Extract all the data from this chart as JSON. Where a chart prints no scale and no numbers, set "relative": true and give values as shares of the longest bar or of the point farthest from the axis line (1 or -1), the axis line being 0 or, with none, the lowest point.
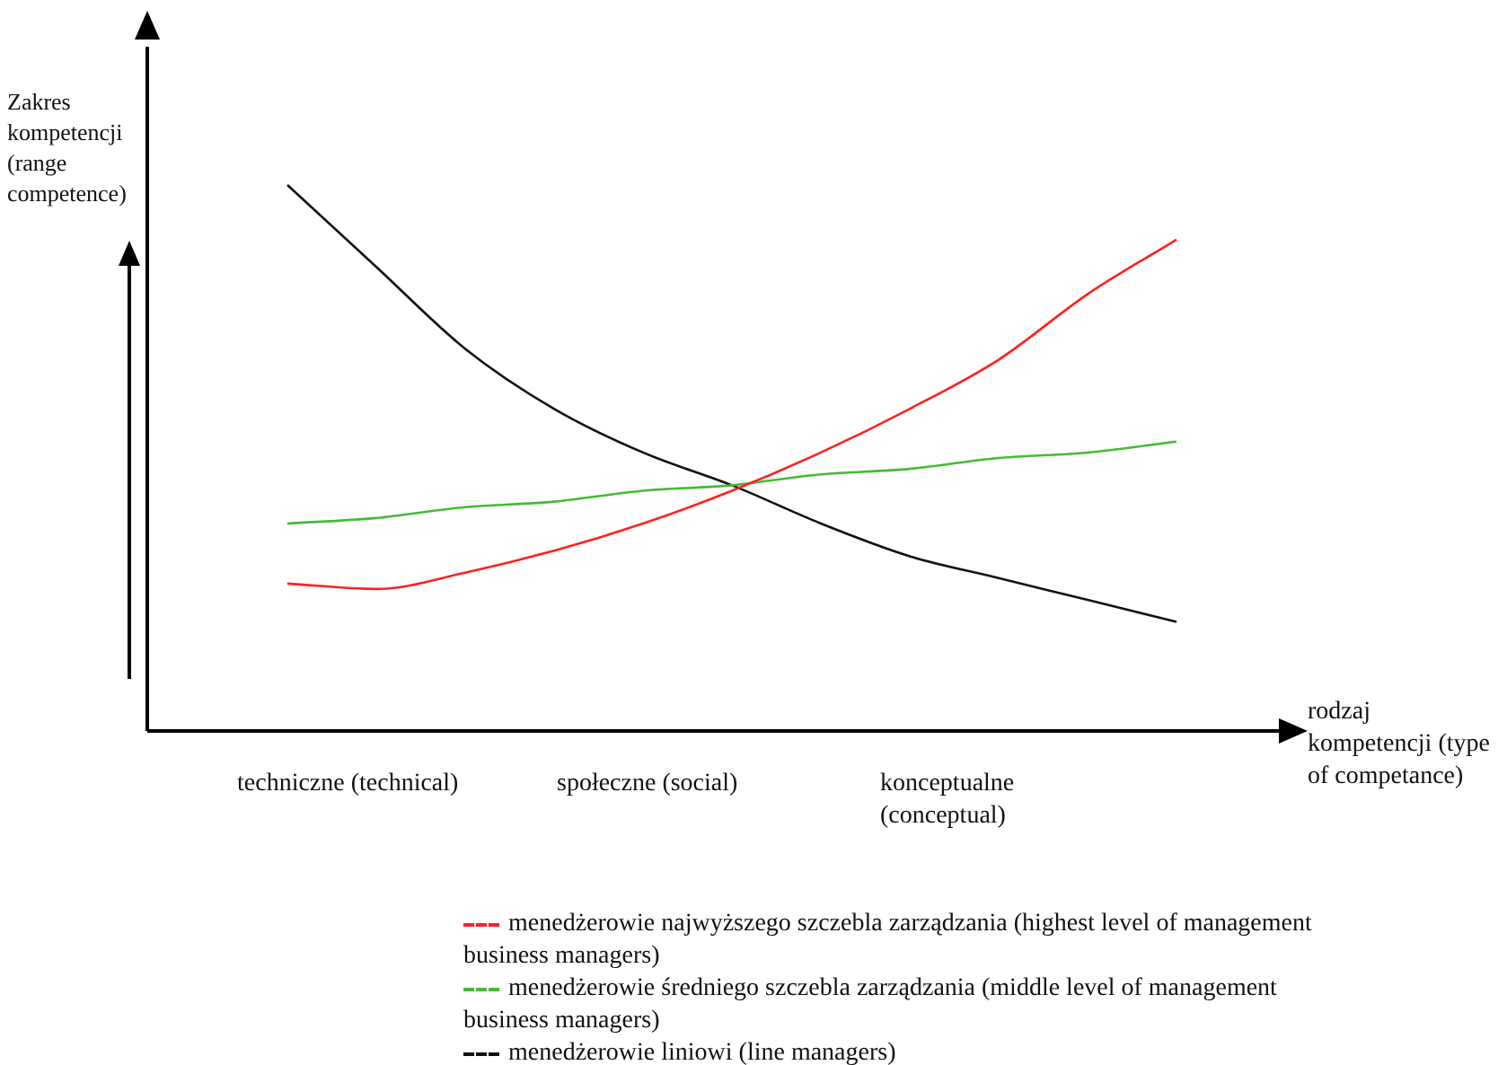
{
  "chart_data": {
    "type": "line",
    "relative": true,
    "ylabel": "Zakres kompetencji (range competence)",
    "xlabel": "rodzaj kompetencji (type of competance)",
    "annotations": [
      "techniczne (technical)",
      "społeczne (social)",
      "konceptualne (conceptual)"
    ],
    "categories": [
      null,
      null,
      null,
      null,
      null,
      null,
      null,
      null,
      null,
      null,
      null
    ],
    "legend": "bottom",
    "grid": false,
    "marker": "none",
    "line_style": "solid",
    "series": [
      {
        "name": "menedżerowie najwyższego szczebla zarządzania (highest level of management business managers)",
        "color": "#ff2020",
        "values": [
          0.27,
          0.26,
          0.29,
          0.33,
          0.38,
          0.44,
          0.51,
          0.59,
          0.68,
          0.8,
          0.9
        ]
      },
      {
        "name": "menedżerowie średniego szczebla zarządzania (middle level of management business managers)",
        "color": "#44bb33",
        "values": [
          0.38,
          0.39,
          0.41,
          0.42,
          0.44,
          0.45,
          0.47,
          0.48,
          0.5,
          0.51,
          0.53
        ]
      },
      {
        "name": "menedżerowie liniowi (line managers)",
        "color": "#111111",
        "values": [
          1,
          0.85,
          0.7,
          0.59,
          0.51,
          0.45,
          0.38,
          0.32,
          0.28,
          0.24,
          0.2
        ]
      }
    ]
  }
}
